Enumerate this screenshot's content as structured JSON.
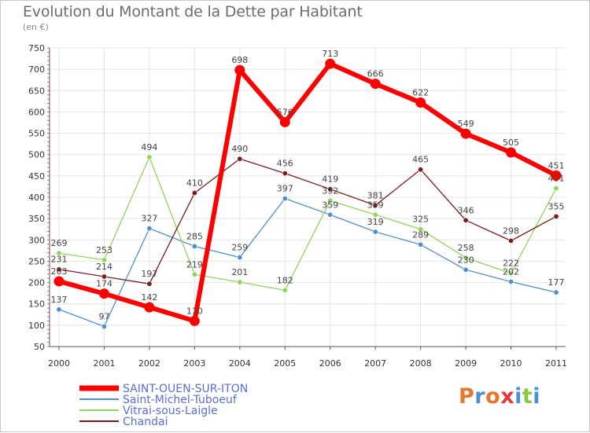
{
  "title": "Evolution du Montant de la Dette par Habitant",
  "unit": "(en €)",
  "logo": {
    "text": "Proxiti",
    "colors": [
      "#e8772e",
      "#4a90d9",
      "#e8772e",
      "#e23a3a",
      "#4a90d9",
      "#8dc63f",
      "#4a90d9"
    ]
  },
  "chart_data": {
    "type": "line",
    "title": "Evolution du Montant de la Dette par Habitant",
    "ylabel": "(en €)",
    "xlabel": "",
    "ylim": [
      50,
      750
    ],
    "yticks": [
      50,
      100,
      150,
      200,
      250,
      300,
      350,
      400,
      450,
      500,
      550,
      600,
      650,
      700,
      750
    ],
    "grid": true,
    "legend_position": "bottom-left",
    "categories": [
      "2000",
      "2001",
      "2002",
      "2003",
      "2004",
      "2005",
      "2006",
      "2007",
      "2008",
      "2009",
      "2010",
      "2011"
    ],
    "series": [
      {
        "name": "SAINT-OUEN-SUR-ITON",
        "color": "#ff0000",
        "values": [
          203,
          174,
          142,
          110,
          698,
          576,
          713,
          666,
          622,
          549,
          505,
          451
        ]
      },
      {
        "name": "Saint-Michel-Tuboeuf",
        "color": "#4f8fcf",
        "values": [
          137,
          97,
          327,
          285,
          259,
          397,
          359,
          319,
          289,
          230,
          202,
          177
        ]
      },
      {
        "name": "Vitrai-sous-Laigle",
        "color": "#8ed45a",
        "values": [
          269,
          253,
          494,
          219,
          201,
          182,
          392,
          359,
          325,
          258,
          222,
          421
        ]
      },
      {
        "name": "Chandai",
        "color": "#7a1c1c",
        "values": [
          231,
          214,
          197,
          410,
          490,
          456,
          419,
          381,
          465,
          346,
          298,
          355
        ]
      }
    ]
  }
}
